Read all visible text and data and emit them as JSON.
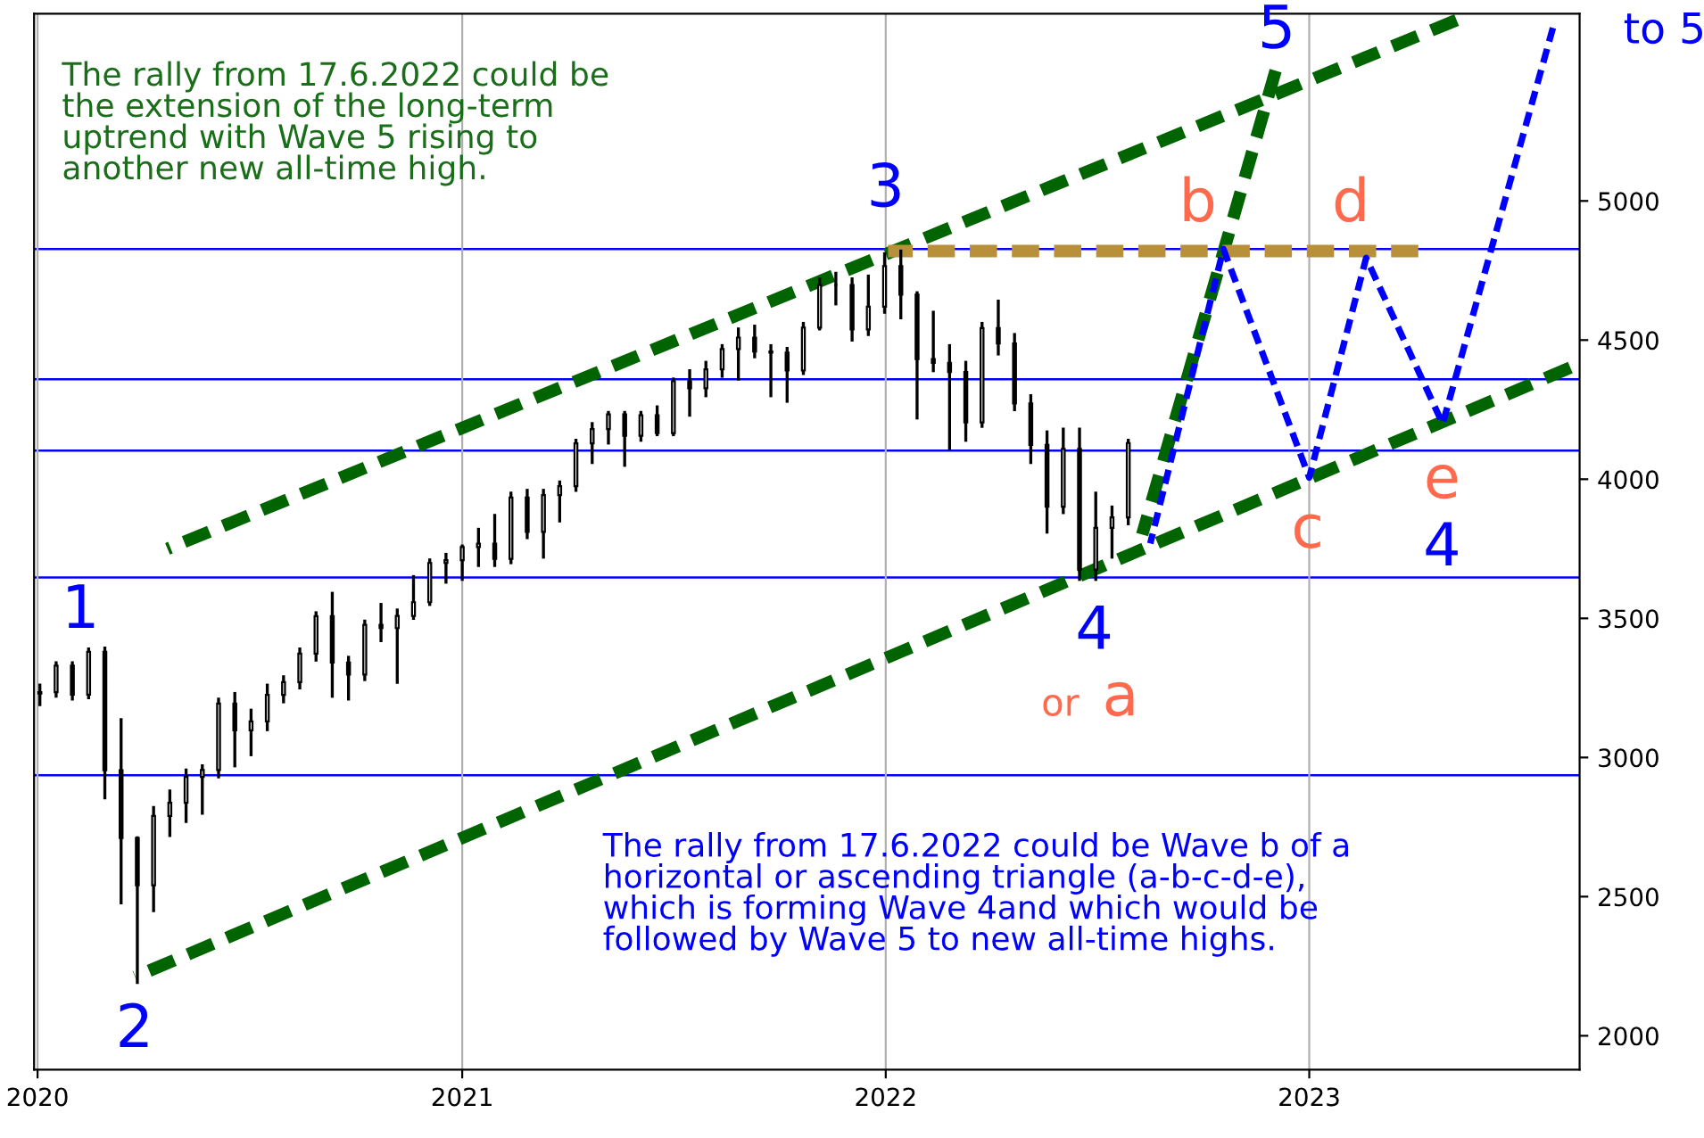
{
  "chart_data": {
    "type": "candlestick",
    "color": "#000000",
    "x": [
      "2020-01-03",
      "2020-01-17",
      "2020-01-31",
      "2020-02-14",
      "2020-02-28",
      "2020-03-13",
      "2020-03-27",
      "2020-04-10",
      "2020-04-24",
      "2020-05-08",
      "2020-05-22",
      "2020-06-05",
      "2020-06-19",
      "2020-07-03",
      "2020-07-17",
      "2020-07-31",
      "2020-08-14",
      "2020-08-28",
      "2020-09-11",
      "2020-09-25",
      "2020-10-09",
      "2020-10-23",
      "2020-11-06",
      "2020-11-20",
      "2020-12-04",
      "2020-12-18",
      "2021-01-01",
      "2021-01-15",
      "2021-01-29",
      "2021-02-12",
      "2021-02-26",
      "2021-03-12",
      "2021-03-26",
      "2021-04-09",
      "2021-04-23",
      "2021-05-07",
      "2021-05-21",
      "2021-06-04",
      "2021-06-18",
      "2021-07-02",
      "2021-07-16",
      "2021-07-30",
      "2021-08-13",
      "2021-08-27",
      "2021-09-10",
      "2021-09-24",
      "2021-10-08",
      "2021-10-22",
      "2021-11-05",
      "2021-11-19",
      "2021-12-03",
      "2021-12-17",
      "2021-12-31",
      "2022-01-14",
      "2022-01-28",
      "2022-02-11",
      "2022-02-25",
      "2022-03-11",
      "2022-03-25",
      "2022-04-08",
      "2022-04-22",
      "2022-05-06",
      "2022-05-20",
      "2022-06-03",
      "2022-06-17",
      "2022-07-01",
      "2022-07-15",
      "2022-07-29"
    ],
    "ohlc": [
      [
        3230,
        3260,
        3190,
        3235
      ],
      [
        3235,
        3340,
        3220,
        3330
      ],
      [
        3330,
        3340,
        3210,
        3226
      ],
      [
        3226,
        3390,
        3215,
        3380
      ],
      [
        3380,
        3393,
        2855,
        2954
      ],
      [
        2954,
        3136,
        2478,
        2711
      ],
      [
        2711,
        2711,
        2192,
        2541
      ],
      [
        2541,
        2820,
        2450,
        2790
      ],
      [
        2790,
        2880,
        2720,
        2837
      ],
      [
        2837,
        2955,
        2770,
        2930
      ],
      [
        2930,
        2970,
        2800,
        2955
      ],
      [
        2955,
        3210,
        2930,
        3194
      ],
      [
        3194,
        3230,
        2970,
        3098
      ],
      [
        3098,
        3170,
        3010,
        3130
      ],
      [
        3130,
        3260,
        3100,
        3225
      ],
      [
        3225,
        3290,
        3200,
        3271
      ],
      [
        3271,
        3390,
        3250,
        3373
      ],
      [
        3373,
        3520,
        3350,
        3508
      ],
      [
        3508,
        3590,
        3220,
        3341
      ],
      [
        3341,
        3360,
        3210,
        3298
      ],
      [
        3298,
        3490,
        3280,
        3477
      ],
      [
        3477,
        3550,
        3420,
        3465
      ],
      [
        3465,
        3530,
        3270,
        3509
      ],
      [
        3509,
        3650,
        3500,
        3558
      ],
      [
        3558,
        3710,
        3550,
        3699
      ],
      [
        3699,
        3730,
        3630,
        3709
      ],
      [
        3709,
        3760,
        3640,
        3756
      ],
      [
        3756,
        3820,
        3690,
        3768
      ],
      [
        3768,
        3870,
        3690,
        3714
      ],
      [
        3714,
        3950,
        3700,
        3934
      ],
      [
        3934,
        3960,
        3790,
        3811
      ],
      [
        3811,
        3960,
        3720,
        3943
      ],
      [
        3943,
        3990,
        3850,
        3975
      ],
      [
        3975,
        4140,
        3960,
        4129
      ],
      [
        4129,
        4200,
        4060,
        4180
      ],
      [
        4180,
        4240,
        4130,
        4233
      ],
      [
        4233,
        4240,
        4050,
        4156
      ],
      [
        4156,
        4240,
        4140,
        4230
      ],
      [
        4230,
        4260,
        4160,
        4166
      ],
      [
        4166,
        4360,
        4160,
        4352
      ],
      [
        4352,
        4390,
        4230,
        4327
      ],
      [
        4327,
        4420,
        4300,
        4395
      ],
      [
        4395,
        4480,
        4370,
        4468
      ],
      [
        4468,
        4540,
        4360,
        4509
      ],
      [
        4509,
        4550,
        4440,
        4459
      ],
      [
        4459,
        4480,
        4300,
        4455
      ],
      [
        4455,
        4470,
        4280,
        4391
      ],
      [
        4391,
        4560,
        4380,
        4545
      ],
      [
        4545,
        4720,
        4540,
        4698
      ],
      [
        4698,
        4740,
        4630,
        4698
      ],
      [
        4698,
        4720,
        4500,
        4538
      ],
      [
        4538,
        4730,
        4520,
        4620
      ],
      [
        4620,
        4810,
        4600,
        4766
      ],
      [
        4766,
        4820,
        4580,
        4663
      ],
      [
        4663,
        4670,
        4220,
        4432
      ],
      [
        4432,
        4600,
        4390,
        4418
      ],
      [
        4418,
        4480,
        4110,
        4385
      ],
      [
        4385,
        4420,
        4140,
        4204
      ],
      [
        4204,
        4560,
        4190,
        4543
      ],
      [
        4543,
        4640,
        4450,
        4488
      ],
      [
        4488,
        4520,
        4250,
        4272
      ],
      [
        4272,
        4300,
        4060,
        4123
      ],
      [
        4123,
        4170,
        3810,
        3901
      ],
      [
        3901,
        4180,
        3880,
        4109
      ],
      [
        4109,
        4180,
        3640,
        3675
      ],
      [
        3675,
        3950,
        3640,
        3825
      ],
      [
        3825,
        3900,
        3720,
        3863
      ],
      [
        3863,
        4140,
        3840,
        4130
      ]
    ],
    "series": [
      {
        "type": "line",
        "color": "#006400",
        "line_style": "dashed",
        "x": [
          "2020-04-22",
          "2023-05-08"
        ],
        "values": [
          3750,
          5650
        ]
      },
      {
        "type": "line",
        "color": "#006400",
        "line_style": "dashed",
        "x": [
          "2020-03-25",
          "2023-08-14"
        ],
        "values": [
          2212,
          4401
        ]
      },
      {
        "type": "line",
        "color": "#006400",
        "line_style": "dashed",
        "x": [
          "2022-08-10",
          "2022-12-03"
        ],
        "values": [
          3801,
          5468
        ]
      },
      {
        "type": "line",
        "color": "#b8903a",
        "line_style": "dashed",
        "x": [
          "2022-01-03",
          "2023-04-05"
        ],
        "values": [
          4820,
          4820
        ]
      },
      {
        "type": "line",
        "color": "#0000ff",
        "line_style": "dashed",
        "x": [
          "2022-08-17",
          "2022-10-19",
          "2023-01-01",
          "2023-02-19",
          "2023-04-26",
          "2023-07-30"
        ],
        "values": [
          3769,
          4827,
          4006,
          4795,
          4199,
          5622
        ]
      }
    ],
    "ref_lines": [
      {
        "axis": "y",
        "value": 4827,
        "color": "#0000ff"
      },
      {
        "axis": "y",
        "value": 4359,
        "color": "#0000ff"
      },
      {
        "axis": "y",
        "value": 4103,
        "color": "#0000ff"
      },
      {
        "axis": "y",
        "value": 3647,
        "color": "#0000ff"
      },
      {
        "axis": "y",
        "value": 2936,
        "color": "#0000ff"
      }
    ],
    "xlim": [
      "2019-12-29",
      "2023-08-22"
    ],
    "ylim": [
      1878,
      5673
    ],
    "xticks": [
      {
        "value": "2020-01-01",
        "label": "2020"
      },
      {
        "value": "2021-01-01",
        "label": "2021"
      },
      {
        "value": "2022-01-01",
        "label": "2022"
      },
      {
        "value": "2023-01-01",
        "label": "2023"
      }
    ],
    "yticks": [
      2000,
      2500,
      3000,
      3500,
      4000,
      4500,
      5000
    ],
    "grid": "x",
    "annotations": [
      "The rally from 17.6.2022 could be\nthe extension of the long-term\nuptrend with Wave 5 rising to\nanother new all-time high.",
      "The rally from 17.6.2022 could be Wave b of a\nhorizontal or ascending triangle (a-b-c-d-e),\nwhich is forming Wave 4and which would be\nfollowed by Wave 5 to new all-time highs.",
      "1",
      "2",
      "3",
      "4",
      "4",
      "5",
      "to 5",
      "or",
      "a",
      "b",
      "c",
      "d",
      "e"
    ]
  }
}
